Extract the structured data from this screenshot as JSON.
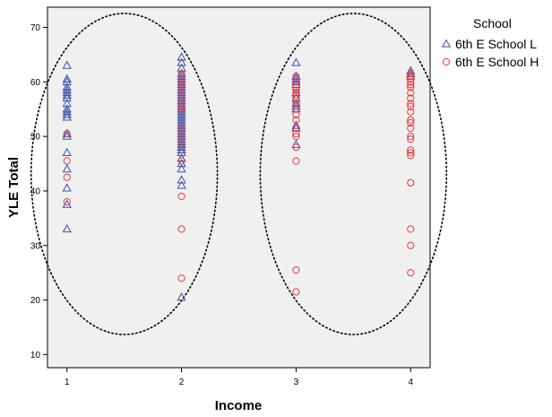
{
  "chart_data": {
    "type": "scatter",
    "xlabel": "Income",
    "ylabel": "YLE Total",
    "x_ticks": [
      1,
      2,
      3,
      4
    ],
    "y_ticks": [
      10,
      20,
      30,
      40,
      50,
      60,
      70
    ],
    "xlim": [
      0.83,
      4.17
    ],
    "ylim": [
      7.6,
      73.7
    ],
    "grid": false,
    "background": "#f0f0f0",
    "legend": {
      "title": "School",
      "placement": "right"
    },
    "series": [
      {
        "name": "6th E School L",
        "marker": "triangle",
        "color": "#3a4fa8",
        "points": [
          [
            1,
            63
          ],
          [
            1,
            60.5
          ],
          [
            1,
            60
          ],
          [
            1,
            59
          ],
          [
            1,
            58.5
          ],
          [
            1,
            58
          ],
          [
            1,
            57.5
          ],
          [
            1,
            57
          ],
          [
            1,
            56
          ],
          [
            1,
            55
          ],
          [
            1,
            54.5
          ],
          [
            1,
            54
          ],
          [
            1,
            53.5
          ],
          [
            1,
            50.5
          ],
          [
            1,
            50
          ],
          [
            1,
            47
          ],
          [
            1,
            44
          ],
          [
            1,
            40.5
          ],
          [
            1,
            37.5
          ],
          [
            1,
            33
          ],
          [
            2,
            64.5
          ],
          [
            2,
            63.5
          ],
          [
            2,
            62.5
          ],
          [
            2,
            61.5
          ],
          [
            2,
            61
          ],
          [
            2,
            60.5
          ],
          [
            2,
            60
          ],
          [
            2,
            59.5
          ],
          [
            2,
            59
          ],
          [
            2,
            58.5
          ],
          [
            2,
            58
          ],
          [
            2,
            57.5
          ],
          [
            2,
            57
          ],
          [
            2,
            56.5
          ],
          [
            2,
            56
          ],
          [
            2,
            55.5
          ],
          [
            2,
            55
          ],
          [
            2,
            54.5
          ],
          [
            2,
            54
          ],
          [
            2,
            53.5
          ],
          [
            2,
            53
          ],
          [
            2,
            52.5
          ],
          [
            2,
            52
          ],
          [
            2,
            51.5
          ],
          [
            2,
            51
          ],
          [
            2,
            50.5
          ],
          [
            2,
            50
          ],
          [
            2,
            49.5
          ],
          [
            2,
            49
          ],
          [
            2,
            48.5
          ],
          [
            2,
            48
          ],
          [
            2,
            47.5
          ],
          [
            2,
            47
          ],
          [
            2,
            46
          ],
          [
            2,
            45
          ],
          [
            2,
            44
          ],
          [
            2,
            42
          ],
          [
            2,
            41
          ],
          [
            2,
            20.5
          ],
          [
            3,
            63.5
          ],
          [
            3,
            61
          ],
          [
            3,
            60.5
          ],
          [
            3,
            60
          ],
          [
            3,
            59.5
          ],
          [
            3,
            58
          ],
          [
            3,
            57
          ],
          [
            3,
            56
          ],
          [
            3,
            55.5
          ],
          [
            3,
            55
          ],
          [
            3,
            52
          ],
          [
            3,
            51.5
          ],
          [
            3,
            48.5
          ],
          [
            4,
            62
          ],
          [
            4,
            61.5
          ],
          [
            4,
            61
          ]
        ]
      },
      {
        "name": "6th E School H",
        "marker": "circle",
        "color": "#e8383d",
        "points": [
          [
            1,
            50.5
          ],
          [
            1,
            45.5
          ],
          [
            1,
            42.5
          ],
          [
            1,
            38
          ],
          [
            2,
            61.5
          ],
          [
            2,
            60.5
          ],
          [
            2,
            59.5
          ],
          [
            2,
            58.5
          ],
          [
            2,
            57
          ],
          [
            2,
            55.5
          ],
          [
            2,
            55
          ],
          [
            2,
            51.5
          ],
          [
            2,
            50
          ],
          [
            2,
            48.5
          ],
          [
            2,
            45.5
          ],
          [
            2,
            39
          ],
          [
            2,
            33
          ],
          [
            2,
            24
          ],
          [
            3,
            61
          ],
          [
            3,
            60
          ],
          [
            3,
            59
          ],
          [
            3,
            58.5
          ],
          [
            3,
            58
          ],
          [
            3,
            57.5
          ],
          [
            3,
            57
          ],
          [
            3,
            56
          ],
          [
            3,
            55
          ],
          [
            3,
            54
          ],
          [
            3,
            53
          ],
          [
            3,
            51.5
          ],
          [
            3,
            50.5
          ],
          [
            3,
            50
          ],
          [
            3,
            48
          ],
          [
            3,
            45.5
          ],
          [
            3,
            25.5
          ],
          [
            3,
            21.5
          ],
          [
            4,
            61.5
          ],
          [
            4,
            61
          ],
          [
            4,
            60.5
          ],
          [
            4,
            60
          ],
          [
            4,
            59.5
          ],
          [
            4,
            59
          ],
          [
            4,
            58
          ],
          [
            4,
            57
          ],
          [
            4,
            56
          ],
          [
            4,
            55.5
          ],
          [
            4,
            54.5
          ],
          [
            4,
            53
          ],
          [
            4,
            52.5
          ],
          [
            4,
            51.5
          ],
          [
            4,
            50
          ],
          [
            4,
            49.5
          ],
          [
            4,
            47.5
          ],
          [
            4,
            47
          ],
          [
            4,
            46.5
          ],
          [
            4,
            41.5
          ],
          [
            4,
            33
          ],
          [
            4,
            30
          ],
          [
            4,
            25
          ]
        ]
      }
    ],
    "annotations": [
      {
        "shape": "dotted-ellipse",
        "around_x": [
          1,
          2
        ]
      },
      {
        "shape": "dotted-ellipse",
        "around_x": [
          3,
          4
        ]
      }
    ]
  }
}
